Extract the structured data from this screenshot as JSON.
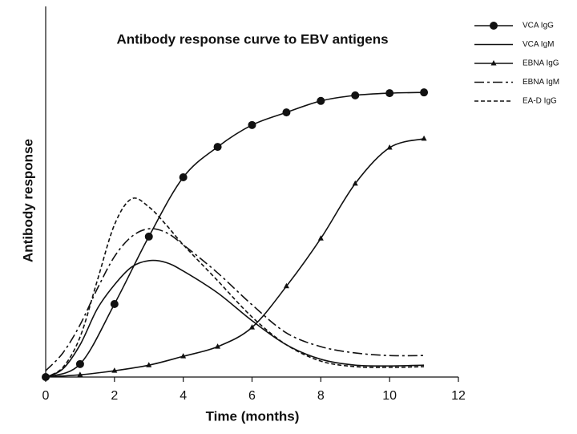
{
  "chart_data": {
    "type": "line",
    "title": "Antibody response curve to EBV antigens",
    "x_label": "Time (months)",
    "y_label": "Antibody response",
    "xlim": [
      0,
      12
    ],
    "xticks": [
      0,
      2,
      4,
      6,
      8,
      10,
      12
    ],
    "ylim": [
      0,
      100
    ],
    "series": [
      {
        "name": "VCA IgG",
        "color": "#111111",
        "dash": "solid",
        "marker": "circle",
        "x": [
          0,
          1,
          2,
          3,
          4,
          5,
          6,
          7,
          8,
          9,
          10,
          11
        ],
        "values": [
          0,
          3.5,
          19.7,
          37.9,
          53.9,
          62.1,
          68,
          71.4,
          74.5,
          76,
          76.6,
          76.8
        ]
      },
      {
        "name": "VCA IgM",
        "color": "#111111",
        "dash": "solid",
        "marker": "none",
        "x": [
          0,
          0.5,
          1,
          1.5,
          2,
          2.5,
          3,
          3.5,
          4,
          5,
          6,
          7,
          8,
          9,
          10,
          11
        ],
        "values": [
          0,
          2.2,
          8.7,
          18.4,
          24.9,
          29.7,
          31.4,
          30.9,
          28.6,
          22.7,
          15.2,
          8.7,
          4.8,
          3.2,
          3.0,
          3.2
        ]
      },
      {
        "name": "EBNA IgG",
        "color": "#111111",
        "dash": "solid",
        "marker": "triangle",
        "x": [
          0,
          1,
          2,
          3,
          4,
          5,
          6,
          7,
          8,
          9,
          10,
          11
        ],
        "values": [
          0,
          0.6,
          1.7,
          3.2,
          5.6,
          8.2,
          13.4,
          24.5,
          37.4,
          52.2,
          61.9,
          64.3
        ]
      },
      {
        "name": "EBNA IgM",
        "color": "#111111",
        "dash": "dashdot",
        "marker": "none",
        "x": [
          0,
          0.5,
          1,
          1.5,
          2,
          2.5,
          3,
          3.5,
          4,
          5,
          6,
          7,
          8,
          9,
          10,
          11
        ],
        "values": [
          1.7,
          6.5,
          14.1,
          23.8,
          32.5,
          37.9,
          40,
          39,
          35.7,
          28.1,
          19.5,
          11.9,
          8.2,
          6.5,
          5.8,
          5.8
        ]
      },
      {
        "name": "EA-D IgG",
        "color": "#111111",
        "dash": "dashed",
        "marker": "none",
        "x": [
          0,
          0.5,
          1,
          1.5,
          2,
          2.5,
          3,
          3.5,
          4,
          5,
          6,
          7,
          8,
          9,
          10,
          11
        ],
        "values": [
          0,
          2.6,
          10.8,
          26,
          41.1,
          48.1,
          45.9,
          41.1,
          35.7,
          26,
          16.2,
          8.7,
          4.3,
          2.8,
          2.6,
          2.8
        ]
      }
    ]
  }
}
